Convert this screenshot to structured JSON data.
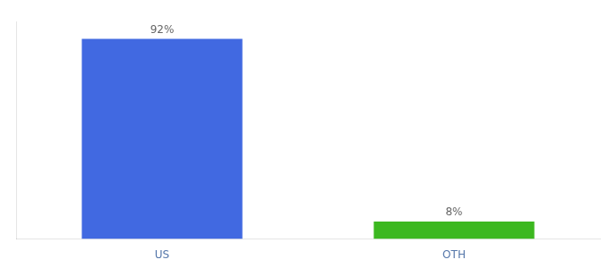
{
  "chart_data": {
    "type": "bar",
    "categories": [
      "US",
      "OTH"
    ],
    "values": [
      92,
      8
    ],
    "value_labels": [
      "92%",
      "8%"
    ],
    "colors": [
      "#4169e1",
      "#3cb820"
    ],
    "ylim": [
      0,
      100
    ],
    "grid": false,
    "data_labels": true,
    "tick_labels": "x"
  }
}
